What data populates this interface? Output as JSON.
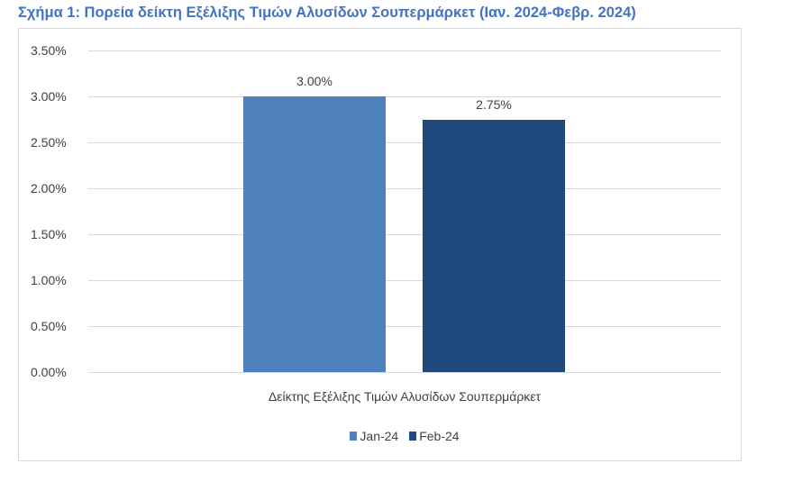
{
  "chart_data": {
    "type": "bar",
    "title": "Σχήμα 1: Πορεία δείκτη Εξέλιξης Τιμών Αλυσίδων Σουπερμάρκετ (Ιαν. 2024-Φεβρ. 2024)",
    "categories": [
      "Δείκτης Εξέλιξης Τιμών Αλυσίδων Σουπερμάρκετ"
    ],
    "series": [
      {
        "name": "Jan-24",
        "values": [
          3.0
        ],
        "label": "3.00%",
        "color": "#4f81bd"
      },
      {
        "name": "Feb-24",
        "values": [
          2.75
        ],
        "label": "2.75%",
        "color": "#1f497d"
      }
    ],
    "xlabel": "Δείκτης Εξέλιξης Τιμών Αλυσίδων Σουπερμάρκετ",
    "ylabel": "",
    "ylim": [
      0,
      3.5
    ],
    "yticks": [
      "0.00%",
      "0.50%",
      "1.00%",
      "1.50%",
      "2.00%",
      "2.50%",
      "3.00%",
      "3.50%"
    ],
    "grid": true,
    "legend_position": "bottom"
  },
  "colors": {
    "title": "#4472c4",
    "jan": "#4f81bd",
    "feb": "#1f497d",
    "grid": "#d9d9d9",
    "text": "#404040"
  }
}
